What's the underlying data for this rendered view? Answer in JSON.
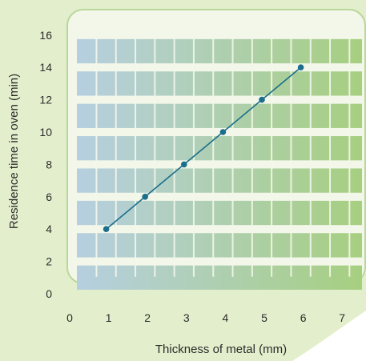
{
  "chart_data": {
    "type": "line",
    "xlabel": "Thickness of metal (mm)",
    "ylabel": "Residence time in oven (min)",
    "x_ticks": [
      "0",
      "1",
      "2",
      "3",
      "4",
      "5",
      "6",
      "7"
    ],
    "y_ticks": [
      "0",
      "2",
      "4",
      "6",
      "8",
      "10",
      "12",
      "14",
      "16"
    ],
    "xlim": [
      0,
      7.5
    ],
    "ylim": [
      0,
      17
    ],
    "series": [
      {
        "x": [
          1,
          2,
          3,
          4,
          5,
          6
        ],
        "y": [
          4,
          6,
          8,
          10,
          12,
          14
        ]
      }
    ],
    "grid": true,
    "colors": {
      "outer_background": "#e3efcc",
      "panel": "#f3f7ea",
      "panel_border": "#b9d79a",
      "band_left": "#b6cfe0",
      "band_right": "#a7cf80",
      "line": "#1b6f8c",
      "marker": "#1b6f8c"
    }
  }
}
